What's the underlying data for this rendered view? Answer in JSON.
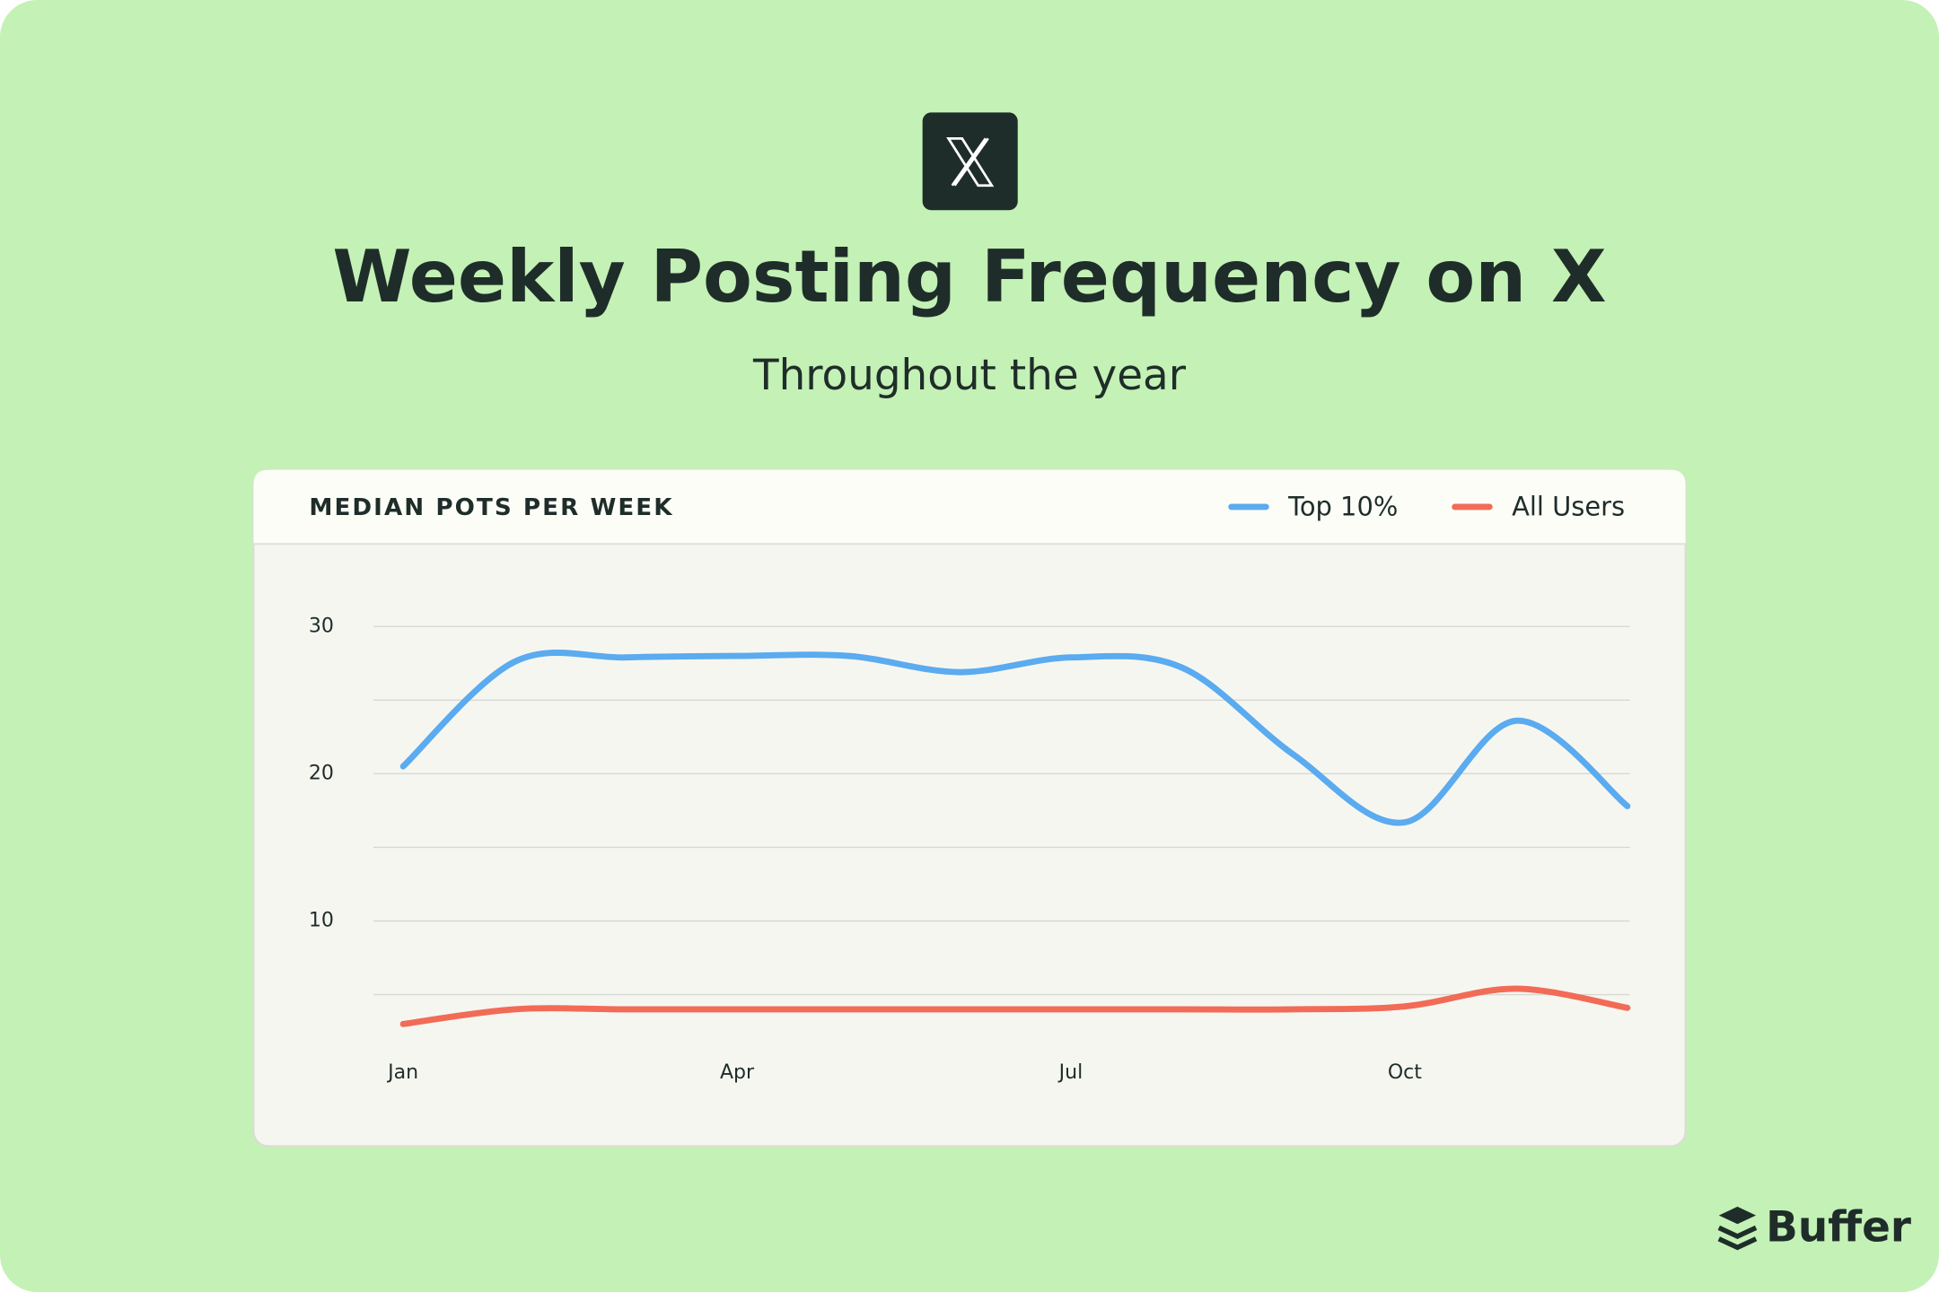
{
  "brand": "Buffer",
  "chart_data": {
    "type": "line",
    "title": "Weekly Posting Frequency on X",
    "subtitle": "Throughout the year",
    "y_label": "MEDIAN POTS PER WEEK",
    "categories": [
      "Jan",
      null,
      null,
      "Apr",
      null,
      null,
      "Jul",
      null,
      null,
      "Oct",
      null,
      null
    ],
    "series": [
      {
        "name": "Top 10%",
        "color": "#5aabef",
        "values": [
          20.5,
          27.6,
          27.9,
          28.0,
          28.0,
          26.9,
          27.9,
          27.2,
          21.3,
          16.7,
          23.6,
          17.8
        ]
      },
      {
        "name": "All Users",
        "color": "#f26b57",
        "values": [
          3.0,
          4.0,
          4.0,
          4.0,
          4.0,
          4.0,
          4.0,
          4.0,
          4.0,
          4.2,
          5.4,
          4.1
        ]
      }
    ],
    "ylim": [
      0,
      33
    ],
    "yticks": [
      10,
      20,
      30
    ],
    "minor_yticks": [
      5,
      15,
      25
    ],
    "grid": true,
    "legend": "top-right"
  }
}
